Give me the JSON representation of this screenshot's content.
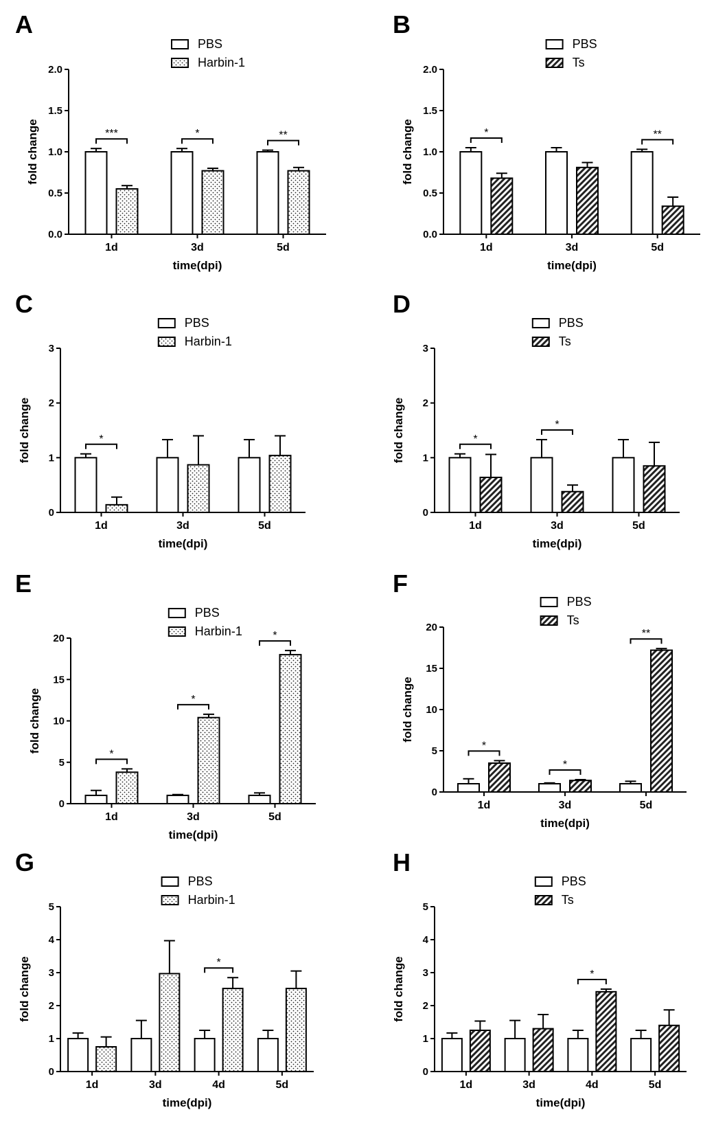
{
  "chart_data": [
    {
      "panel": "A",
      "type": "bar",
      "categories": [
        "1d",
        "3d",
        "5d"
      ],
      "series": [
        {
          "name": "PBS",
          "pattern": "white",
          "values": [
            1.0,
            1.0,
            1.0
          ],
          "errors": [
            0.04,
            0.04,
            0.02
          ]
        },
        {
          "name": "Harbin-1",
          "pattern": "dots",
          "values": [
            0.55,
            0.77,
            0.77
          ],
          "errors": [
            0.04,
            0.03,
            0.04
          ]
        }
      ],
      "significance": [
        {
          "category": "1d",
          "label": "***"
        },
        {
          "category": "3d",
          "label": "*"
        },
        {
          "category": "5d",
          "label": "**"
        }
      ],
      "xlabel": "time(dpi)",
      "ylabel": "fold change",
      "ylim": [
        0,
        2.0
      ],
      "yticks": [
        "0.0",
        "0.5",
        "1.0",
        "1.5",
        "2.0"
      ]
    },
    {
      "panel": "B",
      "type": "bar",
      "categories": [
        "1d",
        "3d",
        "5d"
      ],
      "series": [
        {
          "name": "PBS",
          "pattern": "white",
          "values": [
            1.0,
            1.0,
            1.0
          ],
          "errors": [
            0.05,
            0.05,
            0.03
          ]
        },
        {
          "name": "Ts",
          "pattern": "hatch",
          "values": [
            0.68,
            0.81,
            0.34
          ],
          "errors": [
            0.06,
            0.06,
            0.11
          ]
        }
      ],
      "significance": [
        {
          "category": "1d",
          "label": "*"
        },
        {
          "category": "5d",
          "label": "**"
        }
      ],
      "xlabel": "time(dpi)",
      "ylabel": "fold change",
      "ylim": [
        0,
        2.0
      ],
      "yticks": [
        "0.0",
        "0.5",
        "1.0",
        "1.5",
        "2.0"
      ]
    },
    {
      "panel": "C",
      "type": "bar",
      "categories": [
        "1d",
        "3d",
        "5d"
      ],
      "series": [
        {
          "name": "PBS",
          "pattern": "white",
          "values": [
            1.0,
            1.0,
            1.0
          ],
          "errors": [
            0.07,
            0.33,
            0.33
          ]
        },
        {
          "name": "Harbin-1",
          "pattern": "dots",
          "values": [
            0.14,
            0.87,
            1.04
          ],
          "errors": [
            0.14,
            0.53,
            0.36
          ]
        }
      ],
      "significance": [
        {
          "category": "1d",
          "label": "*"
        }
      ],
      "xlabel": "time(dpi)",
      "ylabel": "fold change",
      "ylim": [
        0,
        3
      ],
      "yticks": [
        "0",
        "1",
        "2",
        "3"
      ]
    },
    {
      "panel": "D",
      "type": "bar",
      "categories": [
        "1d",
        "3d",
        "5d"
      ],
      "series": [
        {
          "name": "PBS",
          "pattern": "white",
          "values": [
            1.0,
            1.0,
            1.0
          ],
          "errors": [
            0.07,
            0.33,
            0.33
          ]
        },
        {
          "name": "Ts",
          "pattern": "hatch",
          "values": [
            0.64,
            0.38,
            0.85
          ],
          "errors": [
            0.42,
            0.12,
            0.43
          ]
        }
      ],
      "significance": [
        {
          "category": "1d",
          "label": "*"
        },
        {
          "category": "3d",
          "label": "*"
        }
      ],
      "xlabel": "time(dpi)",
      "ylabel": "fold change",
      "ylim": [
        0,
        3
      ],
      "yticks": [
        "0",
        "1",
        "2",
        "3"
      ]
    },
    {
      "panel": "E",
      "type": "bar",
      "categories": [
        "1d",
        "3d",
        "5d"
      ],
      "series": [
        {
          "name": "PBS",
          "pattern": "white",
          "values": [
            1.0,
            1.0,
            1.0
          ],
          "errors": [
            0.6,
            0.1,
            0.3
          ]
        },
        {
          "name": "Harbin-1",
          "pattern": "dots",
          "values": [
            3.8,
            10.4,
            18.0
          ],
          "errors": [
            0.4,
            0.4,
            0.5
          ]
        }
      ],
      "significance": [
        {
          "category": "1d",
          "label": "*"
        },
        {
          "category": "3d",
          "label": "*"
        },
        {
          "category": "5d",
          "label": "*"
        }
      ],
      "xlabel": "time(dpi)",
      "ylabel": "fold change",
      "ylim": [
        0,
        20
      ],
      "yticks": [
        "0",
        "5",
        "10",
        "15",
        "20"
      ]
    },
    {
      "panel": "F",
      "type": "bar",
      "categories": [
        "1d",
        "3d",
        "5d"
      ],
      "series": [
        {
          "name": "PBS",
          "pattern": "white",
          "values": [
            1.0,
            1.0,
            1.0
          ],
          "errors": [
            0.6,
            0.1,
            0.3
          ]
        },
        {
          "name": "Ts",
          "pattern": "hatch",
          "values": [
            3.5,
            1.4,
            17.2
          ],
          "errors": [
            0.3,
            0.1,
            0.2
          ]
        }
      ],
      "significance": [
        {
          "category": "1d",
          "label": "*"
        },
        {
          "category": "3d",
          "label": "*"
        },
        {
          "category": "5d",
          "label": "**"
        }
      ],
      "xlabel": "time(dpi)",
      "ylabel": "fold change",
      "ylim": [
        0,
        20
      ],
      "yticks": [
        "0",
        "5",
        "10",
        "15",
        "20"
      ]
    },
    {
      "panel": "G",
      "type": "bar",
      "categories": [
        "1d",
        "3d",
        "4d",
        "5d"
      ],
      "series": [
        {
          "name": "PBS",
          "pattern": "white",
          "values": [
            1.0,
            1.0,
            1.0,
            1.0
          ],
          "errors": [
            0.17,
            0.55,
            0.25,
            0.25
          ]
        },
        {
          "name": "Harbin-1",
          "pattern": "dots",
          "values": [
            0.75,
            2.97,
            2.52,
            2.52
          ],
          "errors": [
            0.3,
            1.0,
            0.33,
            0.53
          ]
        }
      ],
      "significance": [
        {
          "category": "4d",
          "label": "*"
        }
      ],
      "xlabel": "time(dpi)",
      "ylabel": "fold change",
      "ylim": [
        0,
        5
      ],
      "yticks": [
        "0",
        "1",
        "2",
        "3",
        "4",
        "5"
      ]
    },
    {
      "panel": "H",
      "type": "bar",
      "categories": [
        "1d",
        "3d",
        "4d",
        "5d"
      ],
      "series": [
        {
          "name": "PBS",
          "pattern": "white",
          "values": [
            1.0,
            1.0,
            1.0,
            1.0
          ],
          "errors": [
            0.17,
            0.55,
            0.25,
            0.25
          ]
        },
        {
          "name": "Ts",
          "pattern": "hatch",
          "values": [
            1.25,
            1.3,
            2.42,
            1.4
          ],
          "errors": [
            0.28,
            0.43,
            0.08,
            0.47
          ]
        }
      ],
      "significance": [
        {
          "category": "4d",
          "label": "*"
        }
      ],
      "xlabel": "time(dpi)",
      "ylabel": "fold change",
      "ylim": [
        0,
        5
      ],
      "yticks": [
        "0",
        "1",
        "2",
        "3",
        "4",
        "5"
      ]
    }
  ]
}
